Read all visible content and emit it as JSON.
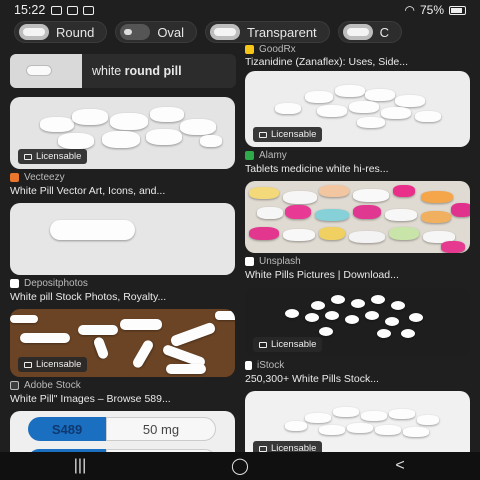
{
  "status": {
    "time": "15:22",
    "battery": "75%"
  },
  "chips": [
    "Round",
    "Oval",
    "Transparent",
    "C"
  ],
  "suggestion": {
    "text_plain": "white ",
    "text_bold": "round pill"
  },
  "left": [
    {
      "badge": "Licensable",
      "source": "Vecteezy",
      "title": "White Pill Vector Art, Icons, and..."
    },
    {
      "badge": "",
      "source": "Depositphotos",
      "title": "White pill Stock Photos, Royalty..."
    },
    {
      "badge": "Licensable",
      "source": "Adobe Stock",
      "title": "White Pill\" Images – Browse 589..."
    },
    {
      "badge": "",
      "source": "",
      "title": "",
      "capsule_code": "S489",
      "capsule_dose": "50 mg"
    }
  ],
  "right": [
    {
      "badge": "",
      "source": "GoodRx",
      "title": "Tizanidine (Zanaflex): Uses, Side..."
    },
    {
      "badge": "Licensable",
      "source": "Alamy",
      "title": "Tablets medicine white hi-res..."
    },
    {
      "badge": "",
      "source": "Unsplash",
      "title": "White Pills Pictures | Download..."
    },
    {
      "badge": "Licensable",
      "source": "iStock",
      "title": "250,300+ White Pills Stock..."
    },
    {
      "badge": "Licensable",
      "source": "",
      "title": ""
    }
  ],
  "nav": {
    "recents": "|||",
    "home": "◯",
    "back": "<"
  }
}
